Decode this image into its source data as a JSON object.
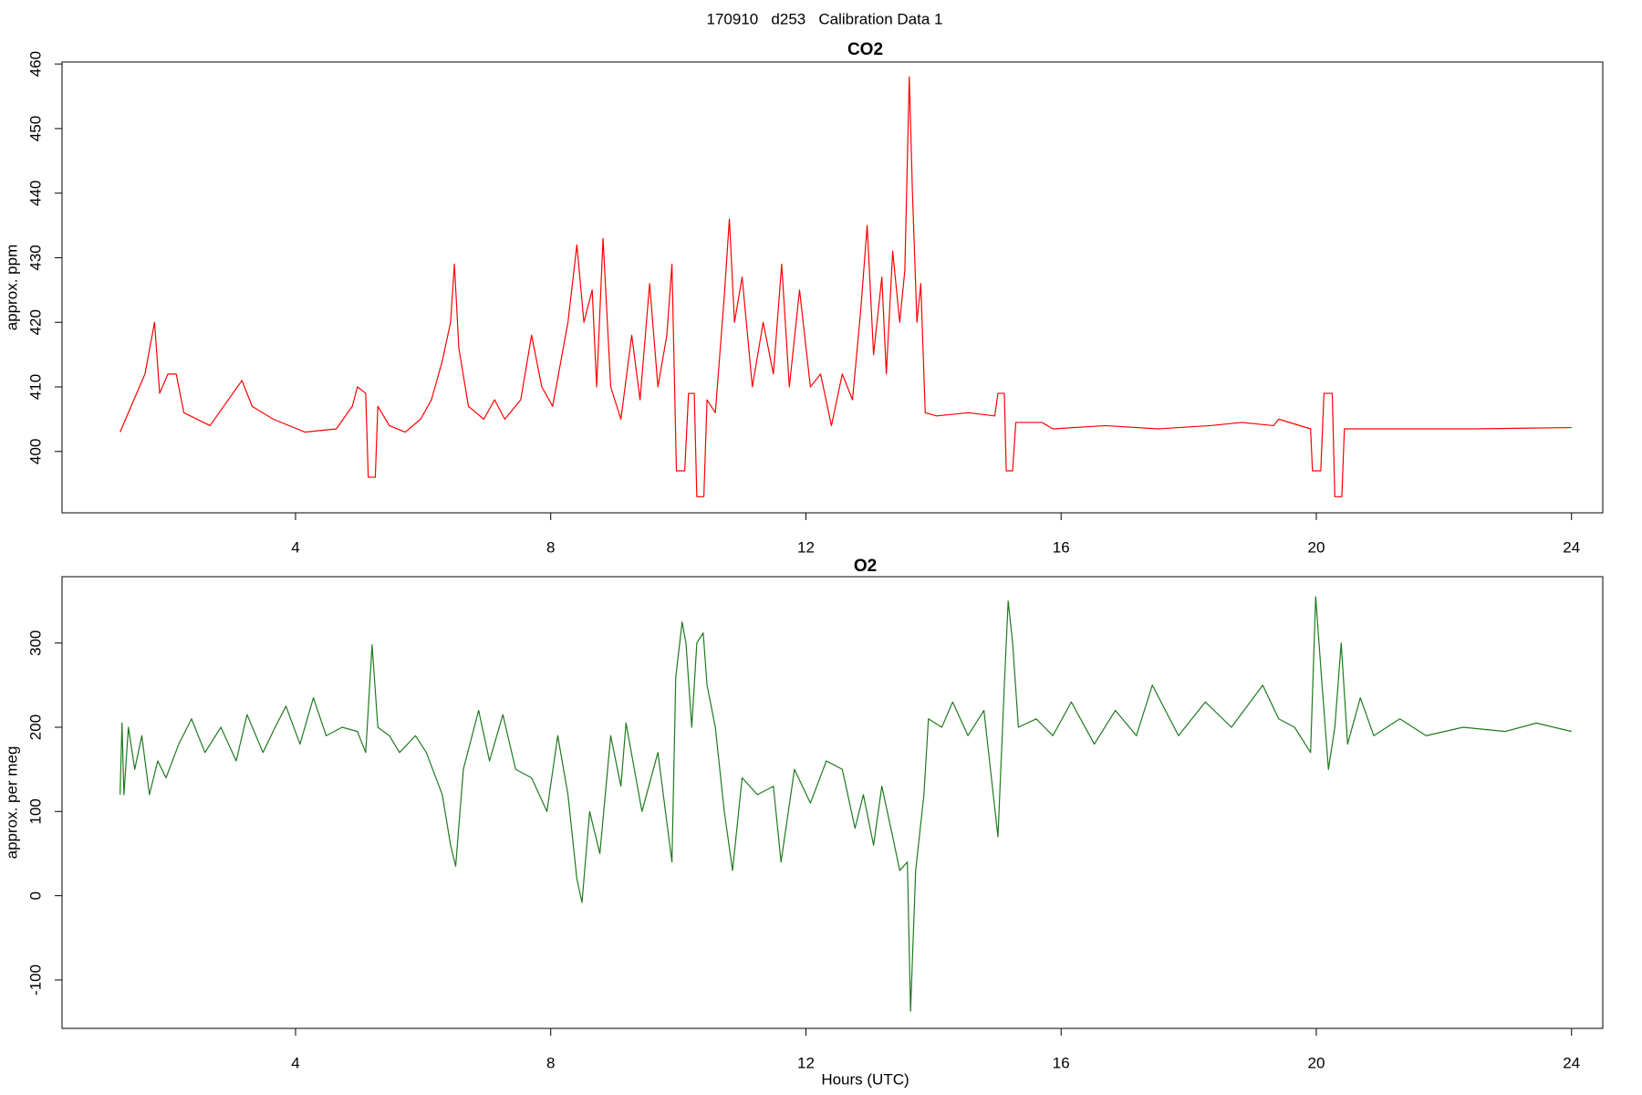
{
  "title": "170910   d253   Calibration Data 1",
  "chart_data": [
    {
      "type": "line",
      "title": "CO2",
      "y_label": "approx. ppm",
      "xlim": [
        0.34,
        24.49
      ],
      "xticks": [
        4,
        8,
        12,
        16,
        20,
        24
      ],
      "ylim": [
        390.5,
        460.3
      ],
      "yticks": [
        400,
        410,
        420,
        430,
        440,
        450,
        460
      ],
      "series": [
        {
          "name": "CO2",
          "color": "#ff0000",
          "x": [
            1.25,
            1.64,
            1.79,
            1.87,
            2.0,
            2.13,
            2.25,
            2.66,
            3.16,
            3.32,
            3.65,
            4.15,
            4.64,
            4.89,
            4.97,
            5.1,
            5.14,
            5.25,
            5.29,
            5.47,
            5.72,
            5.96,
            6.13,
            6.3,
            6.43,
            6.49,
            6.56,
            6.71,
            6.95,
            7.12,
            7.28,
            7.53,
            7.7,
            7.86,
            8.03,
            8.27,
            8.41,
            8.52,
            8.65,
            8.72,
            8.82,
            8.94,
            9.1,
            9.27,
            9.4,
            9.55,
            9.68,
            9.82,
            9.9,
            9.97,
            10.1,
            10.16,
            10.25,
            10.29,
            10.4,
            10.45,
            10.58,
            10.72,
            10.8,
            10.88,
            11.0,
            11.16,
            11.33,
            11.49,
            11.62,
            11.74,
            11.9,
            12.07,
            12.23,
            12.4,
            12.57,
            12.73,
            12.86,
            12.96,
            13.06,
            13.19,
            13.26,
            13.36,
            13.47,
            13.55,
            13.62,
            13.67,
            13.74,
            13.8,
            13.87,
            14.05,
            14.55,
            14.96,
            15.01,
            15.11,
            15.14,
            15.24,
            15.29,
            15.7,
            15.87,
            16.69,
            17.52,
            18.34,
            18.83,
            19.33,
            19.41,
            19.91,
            19.94,
            20.07,
            20.12,
            20.25,
            20.29,
            20.4,
            20.44,
            22.47,
            24.0
          ],
          "values": [
            403,
            412,
            420,
            409,
            412,
            412,
            406,
            404,
            411,
            407,
            405,
            403,
            403.5,
            407,
            410,
            409,
            396,
            396,
            407,
            404,
            403,
            405,
            408,
            414,
            420,
            429,
            416,
            407,
            405,
            408,
            405,
            408,
            418,
            410,
            407,
            420,
            432,
            420,
            425,
            410,
            433,
            410,
            405,
            418,
            408,
            426,
            410,
            418,
            429,
            397,
            397,
            409,
            409,
            393,
            393,
            408,
            406,
            424,
            436,
            420,
            427,
            410,
            420,
            412,
            429,
            410,
            425,
            410,
            412,
            404,
            412,
            408,
            422,
            435,
            415,
            427,
            412,
            431,
            420,
            428,
            458,
            440,
            420,
            426,
            406,
            405.5,
            406,
            405.5,
            409,
            409,
            397,
            397,
            404.5,
            404.5,
            403.5,
            404,
            403.5,
            404,
            404.5,
            404,
            405,
            403.5,
            397,
            397,
            409,
            409,
            393,
            393,
            403.5,
            403.5,
            403.7
          ]
        }
      ]
    },
    {
      "type": "line",
      "title": "O2",
      "y_label": "approx. per meg",
      "x_label": "Hours (UTC)",
      "xlim": [
        0.34,
        24.49
      ],
      "xticks": [
        4,
        8,
        12,
        16,
        20,
        24
      ],
      "ylim": [
        -157.5,
        378.75
      ],
      "yticks": [
        -100,
        0,
        100,
        200,
        300
      ],
      "series": [
        {
          "name": "O2",
          "color": "#1f7a1f",
          "x": [
            1.25,
            1.28,
            1.31,
            1.38,
            1.48,
            1.59,
            1.71,
            1.84,
            1.97,
            2.17,
            2.37,
            2.58,
            2.83,
            3.07,
            3.24,
            3.49,
            3.68,
            3.85,
            4.07,
            4.28,
            4.48,
            4.73,
            4.97,
            5.1,
            5.2,
            5.29,
            5.47,
            5.63,
            5.88,
            6.05,
            6.3,
            6.43,
            6.51,
            6.63,
            6.87,
            7.04,
            7.25,
            7.45,
            7.7,
            7.94,
            8.11,
            8.27,
            8.41,
            8.49,
            8.61,
            8.77,
            8.94,
            9.1,
            9.18,
            9.43,
            9.68,
            9.9,
            9.96,
            10.06,
            10.12,
            10.21,
            10.29,
            10.39,
            10.45,
            10.58,
            10.72,
            10.85,
            11.0,
            11.24,
            11.49,
            11.61,
            11.82,
            12.07,
            12.32,
            12.57,
            12.77,
            12.9,
            13.06,
            13.19,
            13.36,
            13.47,
            13.59,
            13.64,
            13.72,
            13.85,
            13.92,
            14.13,
            14.3,
            14.54,
            14.79,
            15.01,
            15.11,
            15.17,
            15.24,
            15.33,
            15.61,
            15.87,
            16.16,
            16.52,
            16.85,
            17.18,
            17.43,
            17.84,
            18.26,
            18.67,
            19.16,
            19.41,
            19.66,
            19.91,
            19.99,
            20.09,
            20.19,
            20.29,
            20.39,
            20.49,
            20.69,
            20.9,
            21.31,
            21.72,
            22.3,
            22.96,
            23.45,
            24.0
          ],
          "values": [
            120,
            205,
            120,
            200,
            150,
            190,
            120,
            160,
            140,
            180,
            210,
            170,
            200,
            160,
            215,
            170,
            200,
            225,
            180,
            235,
            190,
            200,
            195,
            170,
            298,
            200,
            190,
            170,
            190,
            170,
            120,
            60,
            35,
            150,
            220,
            160,
            215,
            150,
            140,
            100,
            190,
            120,
            20,
            -8,
            100,
            50,
            190,
            130,
            205,
            100,
            170,
            40,
            260,
            325,
            300,
            200,
            300,
            312,
            250,
            200,
            100,
            30,
            140,
            120,
            130,
            40,
            150,
            110,
            160,
            150,
            80,
            120,
            60,
            130,
            70,
            30,
            40,
            -137,
            30,
            120,
            210,
            200,
            230,
            190,
            220,
            70,
            250,
            350,
            300,
            200,
            210,
            190,
            230,
            180,
            220,
            190,
            250,
            190,
            230,
            200,
            250,
            210,
            200,
            170,
            355,
            250,
            150,
            200,
            300,
            180,
            235,
            190,
            210,
            190,
            200,
            195,
            205,
            195
          ]
        }
      ]
    }
  ]
}
